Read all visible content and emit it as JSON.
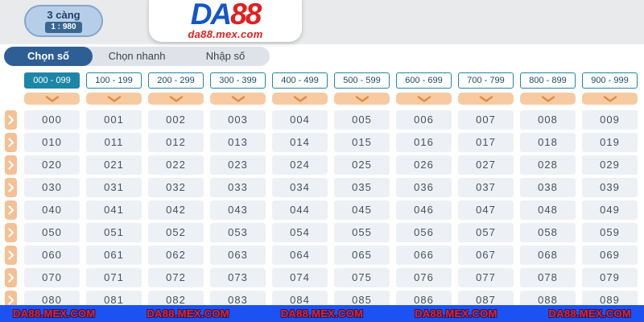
{
  "header": {
    "bet_type": {
      "label": "3 càng",
      "odds": "1 : 980"
    },
    "logo": {
      "part1": "DA",
      "part2": "88",
      "subtitle": "da88.mex.com"
    }
  },
  "tabs": {
    "active_index": 0,
    "items": [
      {
        "label": "Chọn số"
      },
      {
        "label": "Chọn nhanh"
      },
      {
        "label": "Nhập số"
      }
    ]
  },
  "number_grid": {
    "active_column_index": 0,
    "column_headers": [
      "000 - 099",
      "100 - 199",
      "200 - 299",
      "300 - 399",
      "400 - 499",
      "500 - 599",
      "600 - 699",
      "700 - 799",
      "800 - 899",
      "900 - 999"
    ],
    "rows": [
      [
        "000",
        "001",
        "002",
        "003",
        "004",
        "005",
        "006",
        "007",
        "008",
        "009"
      ],
      [
        "010",
        "011",
        "012",
        "013",
        "014",
        "015",
        "016",
        "017",
        "018",
        "019"
      ],
      [
        "020",
        "021",
        "022",
        "023",
        "024",
        "025",
        "026",
        "027",
        "028",
        "029"
      ],
      [
        "030",
        "031",
        "032",
        "033",
        "034",
        "035",
        "036",
        "037",
        "038",
        "039"
      ],
      [
        "040",
        "041",
        "042",
        "043",
        "044",
        "045",
        "046",
        "047",
        "048",
        "049"
      ],
      [
        "050",
        "051",
        "052",
        "053",
        "054",
        "055",
        "056",
        "057",
        "058",
        "059"
      ],
      [
        "060",
        "061",
        "062",
        "063",
        "064",
        "065",
        "066",
        "067",
        "068",
        "069"
      ],
      [
        "070",
        "071",
        "072",
        "073",
        "074",
        "075",
        "076",
        "077",
        "078",
        "079"
      ],
      [
        "080",
        "081",
        "082",
        "083",
        "084",
        "085",
        "086",
        "087",
        "088",
        "089"
      ]
    ]
  },
  "footer": {
    "watermark": "DA88.MEX.COM",
    "repeat": 5
  },
  "colors": {
    "accent_teal": "#1d86a6",
    "accent_blue": "#2e5f94",
    "peach": "#f7cba2",
    "footer_blue": "#1d52f2",
    "logo_blue": "#1356c8",
    "logo_red": "#e0201f"
  }
}
